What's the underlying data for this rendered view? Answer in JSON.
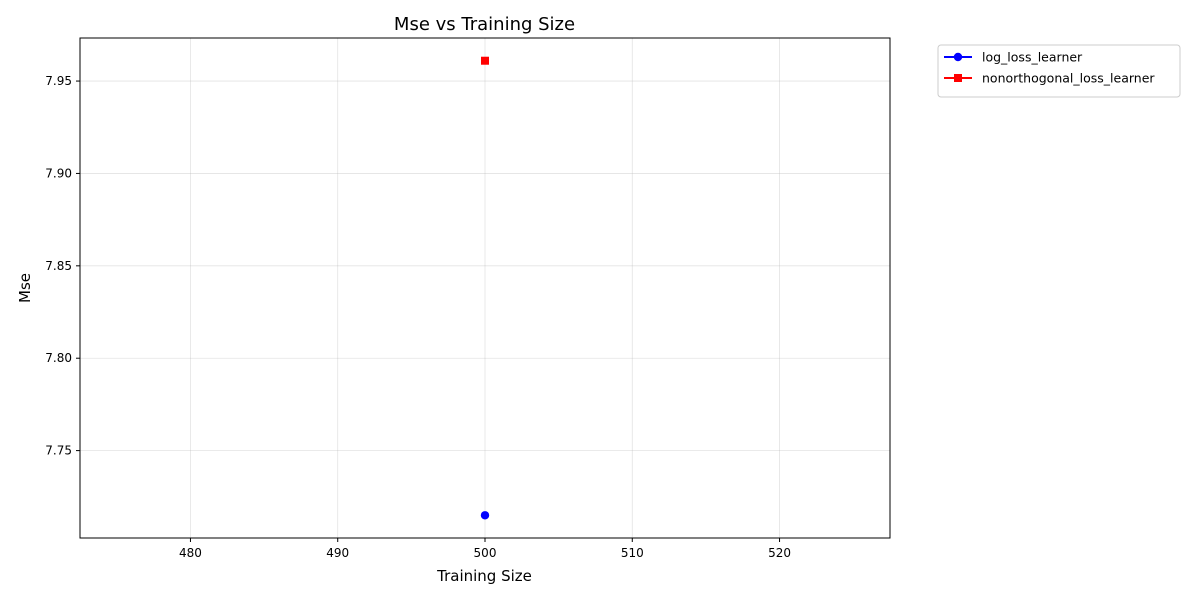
{
  "chart_data": {
    "type": "scatter",
    "title": "Mse vs Training Size",
    "xlabel": "Training Size",
    "ylabel": "Mse",
    "xlim": [
      472.5,
      527.5
    ],
    "ylim": [
      7.7027,
      7.9733
    ],
    "xticks": [
      480,
      490,
      500,
      510,
      520
    ],
    "yticks": [
      7.75,
      7.8,
      7.85,
      7.9,
      7.95
    ],
    "xtick_labels": [
      "480",
      "490",
      "500",
      "510",
      "520"
    ],
    "ytick_labels": [
      "7.75",
      "7.80",
      "7.85",
      "7.90",
      "7.95"
    ],
    "grid": true,
    "legend_position": "outside top-right",
    "series": [
      {
        "name": "log_loss_learner",
        "color": "#0000ff",
        "marker": "circle",
        "x": [
          500
        ],
        "y": [
          7.715
        ]
      },
      {
        "name": "nonorthogonal_loss_learner",
        "color": "#ff0000",
        "marker": "square",
        "x": [
          500
        ],
        "y": [
          7.961
        ]
      }
    ]
  }
}
